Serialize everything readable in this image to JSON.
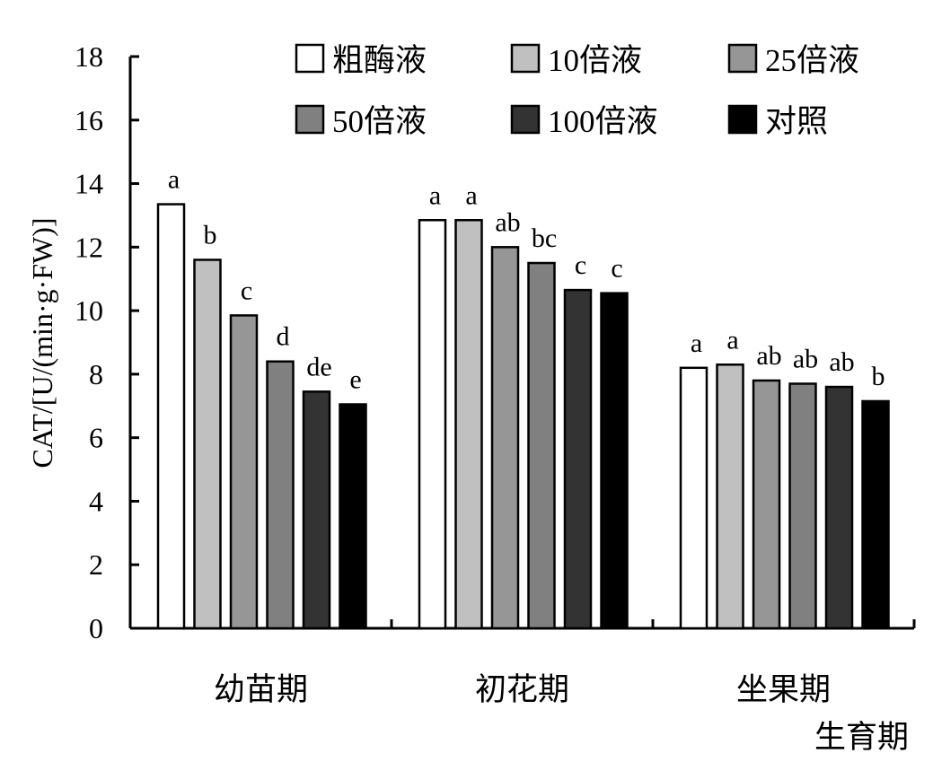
{
  "chart_data": {
    "type": "bar",
    "ylabel": "CAT/[U/(min·g·FW)]",
    "xlabel": "生育期",
    "ylim": [
      0,
      18
    ],
    "yticks": [
      "0",
      "2",
      "4",
      "6",
      "8",
      "10",
      "12",
      "14",
      "16",
      "18"
    ],
    "categories": [
      "幼苗期",
      "初花期",
      "坐果期"
    ],
    "legend_position": "top",
    "grid": false,
    "series": [
      {
        "name": "粗酶液",
        "color": "#ffffff",
        "values": [
          13.35,
          12.85,
          8.2
        ],
        "labels": [
          "a",
          "a",
          "a"
        ]
      },
      {
        "name": "10倍液",
        "color": "#c0c0c0",
        "values": [
          11.6,
          12.85,
          8.3
        ],
        "labels": [
          "b",
          "a",
          "a"
        ]
      },
      {
        "name": "25倍液",
        "color": "#969696",
        "values": [
          9.85,
          12.0,
          7.8
        ],
        "labels": [
          "c",
          "ab",
          "ab"
        ]
      },
      {
        "name": "50倍液",
        "color": "#808080",
        "values": [
          8.4,
          11.5,
          7.7
        ],
        "labels": [
          "d",
          "bc",
          "ab"
        ]
      },
      {
        "name": "100倍液",
        "color": "#333333",
        "values": [
          7.45,
          10.65,
          7.6
        ],
        "labels": [
          "de",
          "c",
          "ab"
        ]
      },
      {
        "name": "对照",
        "color": "#000000",
        "values": [
          7.05,
          10.55,
          7.15
        ],
        "labels": [
          "e",
          "c",
          "b"
        ]
      }
    ]
  }
}
